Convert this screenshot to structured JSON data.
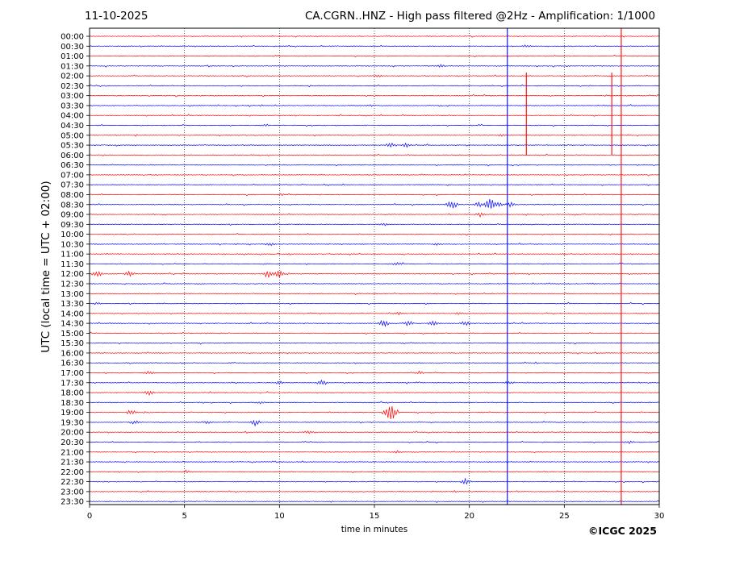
{
  "header": {
    "date": "11-10-2025",
    "title": "CA.CGRN..HNZ - High pass filtered @2Hz - Amplification: 1/1000"
  },
  "footer": {
    "credit": "©ICGC 2025"
  },
  "chart_data": {
    "type": "line",
    "subtype": "helicorder",
    "xlabel": "time in minutes",
    "ylabel": "UTC (local time = UTC + 02:00)",
    "xlim": [
      0,
      30
    ],
    "x_ticks": [
      0,
      5,
      10,
      15,
      20,
      25,
      30
    ],
    "grid": "vertical dotted at 5-minute ticks",
    "trace_colors": [
      "#ff0000",
      "#0000ff"
    ],
    "rows": [
      "00:00",
      "00:30",
      "01:00",
      "01:30",
      "02:00",
      "02:30",
      "03:00",
      "03:30",
      "04:00",
      "04:30",
      "05:00",
      "05:30",
      "06:00",
      "06:30",
      "07:00",
      "07:30",
      "08:00",
      "08:30",
      "09:00",
      "09:30",
      "10:00",
      "10:30",
      "11:00",
      "11:30",
      "12:00",
      "12:30",
      "13:00",
      "13:30",
      "14:00",
      "14:30",
      "15:00",
      "15:30",
      "16:00",
      "16:30",
      "17:00",
      "17:30",
      "18:00",
      "18:30",
      "19:00",
      "19:30",
      "20:00",
      "20:30",
      "21:00",
      "21:30",
      "22:00",
      "22:30",
      "23:00",
      "23:30"
    ],
    "events": [
      {
        "row": "00:30",
        "minute": 23.0,
        "amplitude": 0.4
      },
      {
        "row": "01:30",
        "minute": 18.5,
        "amplitude": 0.3
      },
      {
        "row": "02:00",
        "minute": 15.2,
        "amplitude": 0.3
      },
      {
        "row": "03:30",
        "minute": 14.8,
        "amplitude": 0.25
      },
      {
        "row": "04:30",
        "minute": 9.3,
        "amplitude": 0.25
      },
      {
        "row": "05:00",
        "minute": 21.7,
        "amplitude": 0.3
      },
      {
        "row": "05:30",
        "minute": 15.8,
        "amplitude": 0.8
      },
      {
        "row": "05:30",
        "minute": 16.7,
        "amplitude": 0.6
      },
      {
        "row": "08:30",
        "minute": 19.1,
        "amplitude": 1.5
      },
      {
        "row": "08:30",
        "minute": 20.5,
        "amplitude": 0.8
      },
      {
        "row": "08:30",
        "minute": 21.1,
        "amplitude": 2.0
      },
      {
        "row": "08:30",
        "minute": 21.5,
        "amplitude": 0.9
      },
      {
        "row": "08:30",
        "minute": 22.2,
        "amplitude": 0.9
      },
      {
        "row": "09:00",
        "minute": 20.6,
        "amplitude": 0.7
      },
      {
        "row": "09:30",
        "minute": 15.5,
        "amplitude": 0.5
      },
      {
        "row": "10:30",
        "minute": 9.5,
        "amplitude": 0.4
      },
      {
        "row": "10:30",
        "minute": 18.3,
        "amplitude": 0.3
      },
      {
        "row": "11:30",
        "minute": 16.2,
        "amplitude": 0.6
      },
      {
        "row": "12:00",
        "minute": 0.4,
        "amplitude": 0.9
      },
      {
        "row": "12:00",
        "minute": 2.1,
        "amplitude": 0.8
      },
      {
        "row": "12:00",
        "minute": 9.4,
        "amplitude": 1.2
      },
      {
        "row": "12:00",
        "minute": 10.0,
        "amplitude": 1.5
      },
      {
        "row": "13:30",
        "minute": 0.4,
        "amplitude": 0.3
      },
      {
        "row": "14:00",
        "minute": 16.3,
        "amplitude": 0.4
      },
      {
        "row": "14:00",
        "minute": 19.5,
        "amplitude": 0.3
      },
      {
        "row": "14:30",
        "minute": 15.5,
        "amplitude": 1.2
      },
      {
        "row": "14:30",
        "minute": 16.8,
        "amplitude": 0.9
      },
      {
        "row": "14:30",
        "minute": 18.1,
        "amplitude": 0.7
      },
      {
        "row": "14:30",
        "minute": 19.8,
        "amplitude": 0.7
      },
      {
        "row": "17:00",
        "minute": 3.1,
        "amplitude": 0.5
      },
      {
        "row": "17:00",
        "minute": 17.4,
        "amplitude": 0.5
      },
      {
        "row": "17:30",
        "minute": 10.0,
        "amplitude": 0.4
      },
      {
        "row": "17:30",
        "minute": 12.2,
        "amplitude": 0.7
      },
      {
        "row": "17:30",
        "minute": 22.1,
        "amplitude": 0.5
      },
      {
        "row": "18:00",
        "minute": 3.1,
        "amplitude": 0.8
      },
      {
        "row": "18:30",
        "minute": 9.0,
        "amplitude": 0.4
      },
      {
        "row": "19:00",
        "minute": 2.2,
        "amplitude": 0.9
      },
      {
        "row": "19:00",
        "minute": 15.7,
        "amplitude": 2.0
      },
      {
        "row": "19:00",
        "minute": 16.0,
        "amplitude": 1.8
      },
      {
        "row": "19:30",
        "minute": 2.4,
        "amplitude": 0.6
      },
      {
        "row": "19:30",
        "minute": 6.2,
        "amplitude": 0.4
      },
      {
        "row": "19:30",
        "minute": 8.7,
        "amplitude": 1.0
      },
      {
        "row": "20:00",
        "minute": 11.5,
        "amplitude": 0.4
      },
      {
        "row": "20:30",
        "minute": 28.4,
        "amplitude": 0.4
      },
      {
        "row": "21:00",
        "minute": 16.2,
        "amplitude": 0.3
      },
      {
        "row": "22:00",
        "minute": 5.1,
        "amplitude": 0.4
      },
      {
        "row": "22:30",
        "minute": 19.8,
        "amplitude": 1.0
      }
    ],
    "vertical_spikes": [
      {
        "minute": 22.0,
        "from_row": "00:00",
        "to_row": "23:30",
        "color": "#0000ff"
      },
      {
        "minute": 28.0,
        "from_row": "00:00",
        "to_row": "23:30",
        "color": "#ff0000"
      },
      {
        "minute": 23.0,
        "from_row": "02:00",
        "to_row": "06:00",
        "color": "#ff0000"
      },
      {
        "minute": 27.5,
        "from_row": "02:00",
        "to_row": "06:00",
        "color": "#ff0000"
      }
    ]
  }
}
